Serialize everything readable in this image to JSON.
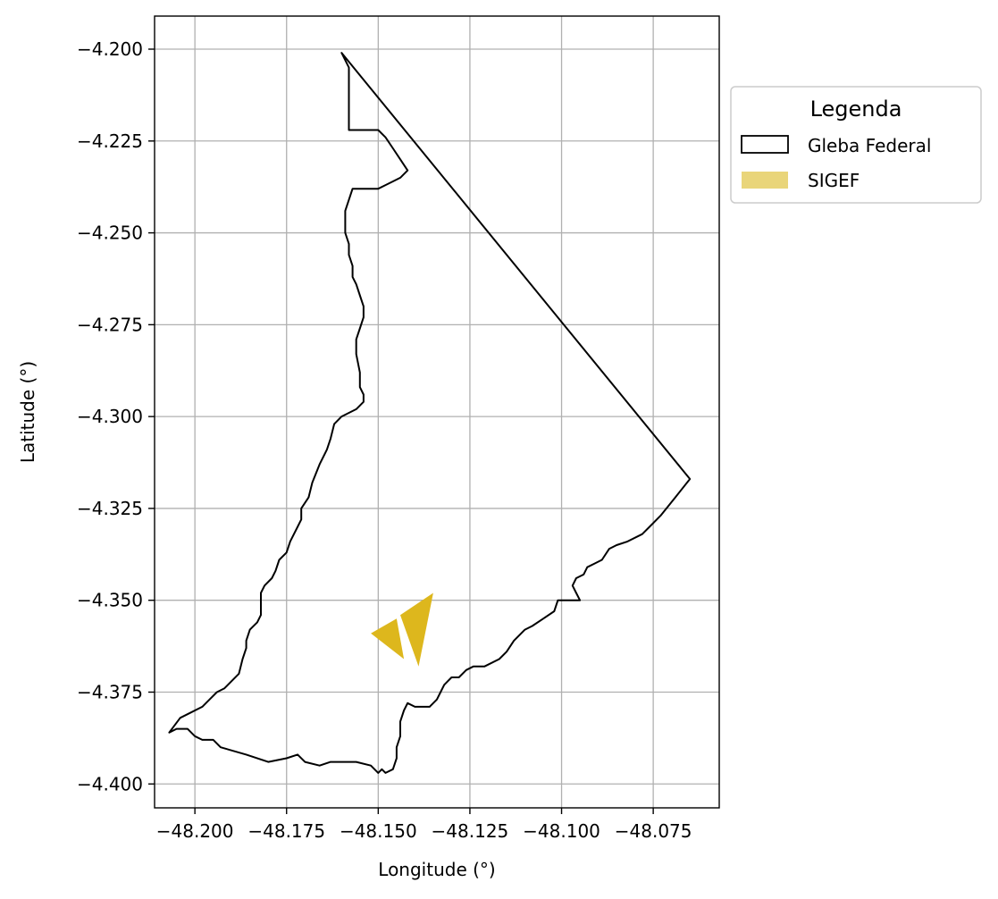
{
  "chart_data": {
    "type": "map",
    "xlabel": "Longitude (°)",
    "ylabel": "Latitude (°)",
    "xlim": [
      -48.211,
      -48.057
    ],
    "ylim": [
      -4.4065,
      -4.191
    ],
    "grid": true,
    "x_ticks": [
      -48.2,
      -48.175,
      -48.15,
      -48.125,
      -48.1,
      -48.075
    ],
    "x_tick_labels": [
      "−48.200",
      "−48.175",
      "−48.150",
      "−48.125",
      "−48.100",
      "−48.075"
    ],
    "y_ticks": [
      -4.2,
      -4.225,
      -4.25,
      -4.275,
      -4.3,
      -4.325,
      -4.35,
      -4.375,
      -4.4
    ],
    "y_tick_labels": [
      "−4.200",
      "−4.225",
      "−4.250",
      "−4.275",
      "−4.300",
      "−4.325",
      "−4.350",
      "−4.375",
      "−4.400"
    ],
    "legend": {
      "title": "Legenda",
      "placement": "outside-right-top",
      "entries": [
        {
          "label": "Gleba Federal",
          "style": "outline",
          "color": "#000000"
        },
        {
          "label": "SIGEF",
          "style": "fill",
          "color": "#e9d57a"
        }
      ]
    },
    "layers": [
      {
        "name": "Gleba Federal",
        "edgecolor": "#000000",
        "facecolor": "none",
        "coordinates": [
          [
            -48.16,
            -4.201
          ],
          [
            -48.065,
            -4.317
          ],
          [
            -48.069,
            -4.322
          ],
          [
            -48.073,
            -4.327
          ],
          [
            -48.076,
            -4.33
          ],
          [
            -48.078,
            -4.332
          ],
          [
            -48.082,
            -4.334
          ],
          [
            -48.085,
            -4.335
          ],
          [
            -48.087,
            -4.336
          ],
          [
            -48.089,
            -4.339
          ],
          [
            -48.091,
            -4.34
          ],
          [
            -48.093,
            -4.341
          ],
          [
            -48.094,
            -4.343
          ],
          [
            -48.096,
            -4.344
          ],
          [
            -48.097,
            -4.346
          ],
          [
            -48.096,
            -4.348
          ],
          [
            -48.095,
            -4.35
          ],
          [
            -48.098,
            -4.35
          ],
          [
            -48.101,
            -4.35
          ],
          [
            -48.102,
            -4.353
          ],
          [
            -48.105,
            -4.355
          ],
          [
            -48.108,
            -4.357
          ],
          [
            -48.11,
            -4.358
          ],
          [
            -48.113,
            -4.361
          ],
          [
            -48.115,
            -4.364
          ],
          [
            -48.117,
            -4.366
          ],
          [
            -48.121,
            -4.368
          ],
          [
            -48.124,
            -4.368
          ],
          [
            -48.126,
            -4.369
          ],
          [
            -48.128,
            -4.371
          ],
          [
            -48.13,
            -4.371
          ],
          [
            -48.132,
            -4.373
          ],
          [
            -48.133,
            -4.375
          ],
          [
            -48.134,
            -4.377
          ],
          [
            -48.136,
            -4.379
          ],
          [
            -48.139,
            -4.379
          ],
          [
            -48.14,
            -4.379
          ],
          [
            -48.142,
            -4.378
          ],
          [
            -48.143,
            -4.38
          ],
          [
            -48.144,
            -4.383
          ],
          [
            -48.144,
            -4.387
          ],
          [
            -48.145,
            -4.39
          ],
          [
            -48.145,
            -4.393
          ],
          [
            -48.146,
            -4.396
          ],
          [
            -48.148,
            -4.397
          ],
          [
            -48.149,
            -4.396
          ],
          [
            -48.15,
            -4.397
          ],
          [
            -48.152,
            -4.395
          ],
          [
            -48.156,
            -4.394
          ],
          [
            -48.163,
            -4.394
          ],
          [
            -48.166,
            -4.395
          ],
          [
            -48.17,
            -4.394
          ],
          [
            -48.172,
            -4.392
          ],
          [
            -48.175,
            -4.393
          ],
          [
            -48.18,
            -4.394
          ],
          [
            -48.186,
            -4.392
          ],
          [
            -48.193,
            -4.39
          ],
          [
            -48.195,
            -4.388
          ],
          [
            -48.198,
            -4.388
          ],
          [
            -48.2,
            -4.387
          ],
          [
            -48.202,
            -4.385
          ],
          [
            -48.205,
            -4.385
          ],
          [
            -48.207,
            -4.386
          ],
          [
            -48.204,
            -4.382
          ],
          [
            -48.202,
            -4.381
          ],
          [
            -48.198,
            -4.379
          ],
          [
            -48.196,
            -4.377
          ],
          [
            -48.194,
            -4.375
          ],
          [
            -48.192,
            -4.374
          ],
          [
            -48.19,
            -4.372
          ],
          [
            -48.188,
            -4.37
          ],
          [
            -48.187,
            -4.366
          ],
          [
            -48.186,
            -4.363
          ],
          [
            -48.186,
            -4.361
          ],
          [
            -48.185,
            -4.358
          ],
          [
            -48.183,
            -4.356
          ],
          [
            -48.182,
            -4.354
          ],
          [
            -48.182,
            -4.352
          ],
          [
            -48.182,
            -4.35
          ],
          [
            -48.182,
            -4.348
          ],
          [
            -48.181,
            -4.346
          ],
          [
            -48.179,
            -4.344
          ],
          [
            -48.178,
            -4.342
          ],
          [
            -48.177,
            -4.339
          ],
          [
            -48.175,
            -4.337
          ],
          [
            -48.174,
            -4.334
          ],
          [
            -48.172,
            -4.33
          ],
          [
            -48.171,
            -4.328
          ],
          [
            -48.171,
            -4.325
          ],
          [
            -48.169,
            -4.322
          ],
          [
            -48.168,
            -4.318
          ],
          [
            -48.166,
            -4.313
          ],
          [
            -48.164,
            -4.309
          ],
          [
            -48.163,
            -4.306
          ],
          [
            -48.162,
            -4.302
          ],
          [
            -48.16,
            -4.3
          ],
          [
            -48.156,
            -4.298
          ],
          [
            -48.154,
            -4.296
          ],
          [
            -48.154,
            -4.294
          ],
          [
            -48.155,
            -4.292
          ],
          [
            -48.155,
            -4.288
          ],
          [
            -48.156,
            -4.283
          ],
          [
            -48.156,
            -4.279
          ],
          [
            -48.155,
            -4.276
          ],
          [
            -48.154,
            -4.273
          ],
          [
            -48.154,
            -4.27
          ],
          [
            -48.155,
            -4.267
          ],
          [
            -48.156,
            -4.264
          ],
          [
            -48.157,
            -4.262
          ],
          [
            -48.157,
            -4.259
          ],
          [
            -48.158,
            -4.256
          ],
          [
            -48.158,
            -4.253
          ],
          [
            -48.159,
            -4.25
          ],
          [
            -48.159,
            -4.247
          ],
          [
            -48.159,
            -4.244
          ],
          [
            -48.158,
            -4.241
          ],
          [
            -48.157,
            -4.238
          ],
          [
            -48.153,
            -4.238
          ],
          [
            -48.15,
            -4.238
          ],
          [
            -48.148,
            -4.237
          ],
          [
            -48.146,
            -4.236
          ],
          [
            -48.144,
            -4.235
          ],
          [
            -48.142,
            -4.233
          ],
          [
            -48.144,
            -4.23
          ],
          [
            -48.146,
            -4.227
          ],
          [
            -48.148,
            -4.224
          ],
          [
            -48.15,
            -4.222
          ],
          [
            -48.155,
            -4.222
          ],
          [
            -48.158,
            -4.222
          ],
          [
            -48.158,
            -4.215
          ],
          [
            -48.158,
            -4.209
          ],
          [
            -48.158,
            -4.205
          ],
          [
            -48.16,
            -4.201
          ]
        ]
      },
      {
        "name": "SIGEF",
        "facecolor": "#ddb71d",
        "edgecolor": "none",
        "polygons": [
          [
            [
              -48.152,
              -4.359
            ],
            [
              -48.145,
              -4.355
            ],
            [
              -48.143,
              -4.366
            ],
            [
              -48.152,
              -4.359
            ]
          ],
          [
            [
              -48.144,
              -4.354
            ],
            [
              -48.135,
              -4.348
            ],
            [
              -48.139,
              -4.368
            ],
            [
              -48.144,
              -4.354
            ]
          ]
        ]
      }
    ]
  }
}
